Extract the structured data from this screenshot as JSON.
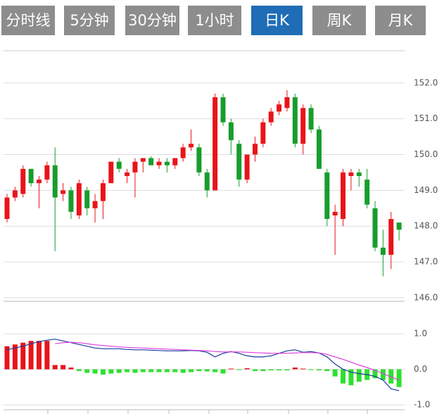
{
  "tabs": [
    "分时线",
    "5分钟",
    "30分钟",
    "1小时",
    "日K",
    "周K",
    "月K"
  ],
  "active_tab": 4,
  "chart_data": [
    {
      "type": "candlestick",
      "up_color": "#e8141b",
      "down_color": "#179d2c",
      "grid": true,
      "open": [
        148.2,
        148.8,
        148.9,
        149.6,
        149.2,
        149.3,
        149.7,
        148.9,
        149.0,
        148.3,
        149.0,
        148.5,
        148.7,
        149.2,
        149.8,
        149.4,
        149.5,
        149.8,
        149.9,
        149.7,
        149.8,
        149.7,
        149.9,
        150.2,
        150.2,
        149.5,
        149.0,
        151.6,
        150.9,
        150.3,
        149.3,
        150.0,
        150.3,
        150.9,
        151.2,
        151.3,
        151.6,
        150.3,
        151.3,
        150.7,
        149.5,
        148.3,
        148.2,
        149.4,
        149.5,
        149.3,
        148.5,
        147.4,
        147.2,
        148.1
      ],
      "high": [
        148.9,
        149.1,
        149.7,
        149.6,
        149.4,
        149.8,
        150.2,
        149.2,
        149.1,
        149.3,
        149.1,
        148.9,
        149.3,
        149.8,
        149.9,
        149.6,
        149.9,
        149.9,
        149.95,
        149.9,
        149.9,
        149.9,
        150.3,
        150.7,
        150.3,
        149.6,
        151.7,
        151.7,
        151.0,
        150.4,
        150.0,
        150.5,
        151.0,
        151.3,
        151.5,
        151.8,
        151.7,
        151.4,
        151.4,
        150.8,
        149.6,
        148.6,
        149.6,
        149.6,
        149.6,
        149.6,
        148.7,
        147.9,
        148.4,
        148.1
      ],
      "low": [
        148.1,
        148.7,
        148.8,
        149.1,
        148.5,
        149.2,
        147.3,
        148.7,
        148.2,
        148.2,
        148.3,
        148.1,
        148.2,
        149.2,
        149.5,
        149.2,
        148.8,
        149.5,
        149.7,
        149.6,
        149.5,
        149.6,
        149.8,
        150.1,
        149.4,
        148.8,
        149.0,
        150.8,
        150.0,
        149.1,
        149.2,
        149.8,
        150.2,
        150.8,
        151.1,
        151.2,
        150.2,
        150.0,
        150.6,
        149.6,
        148.0,
        147.2,
        148.0,
        149.0,
        149.1,
        148.5,
        147.3,
        146.6,
        146.8,
        147.6
      ],
      "close": [
        148.8,
        149.0,
        149.6,
        149.2,
        149.3,
        149.7,
        148.8,
        149.0,
        148.4,
        149.2,
        148.5,
        148.7,
        149.2,
        149.8,
        149.6,
        149.5,
        149.8,
        149.9,
        149.7,
        149.8,
        149.7,
        149.9,
        150.2,
        150.3,
        149.5,
        149.0,
        151.6,
        150.9,
        150.4,
        149.3,
        150.0,
        150.3,
        150.9,
        151.2,
        151.4,
        151.6,
        150.3,
        151.3,
        150.7,
        149.6,
        148.2,
        148.4,
        149.5,
        149.5,
        149.4,
        148.6,
        147.4,
        147.2,
        148.2,
        147.9
      ],
      "ylim": [
        145.9,
        152.9
      ],
      "yticks": [
        {
          "value": 146,
          "label": "146.0"
        },
        {
          "value": 147,
          "label": "147.0"
        },
        {
          "value": 148,
          "label": "148.0"
        },
        {
          "value": 149,
          "label": "149.0"
        },
        {
          "value": 150,
          "label": "150.0"
        },
        {
          "value": 151,
          "label": "151.0"
        },
        {
          "value": 152,
          "label": "152.0"
        }
      ]
    },
    {
      "type": "macd",
      "up_color": "#e8141b",
      "down_color": "#2ee02e",
      "grid": true,
      "values": [
        0.65,
        0.7,
        0.75,
        0.8,
        0.8,
        0.8,
        0.12,
        0.12,
        0.05,
        -0.05,
        -0.1,
        -0.12,
        -0.15,
        -0.12,
        -0.1,
        -0.08,
        -0.1,
        -0.08,
        -0.08,
        -0.08,
        -0.08,
        -0.08,
        -0.1,
        -0.08,
        -0.05,
        -0.06,
        -0.08,
        -0.12,
        0.02,
        -0.02,
        0.03,
        -0.05,
        -0.05,
        -0.03,
        -0.03,
        -0.03,
        0.05,
        0.02,
        -0.02,
        -0.03,
        -0.05,
        -0.2,
        -0.4,
        -0.45,
        -0.35,
        -0.3,
        -0.25,
        -0.3,
        -0.4,
        -0.5
      ],
      "series": [
        {
          "color": "#1a3a9e",
          "values": [
            0.55,
            0.6,
            0.65,
            0.72,
            0.78,
            0.82,
            0.85,
            0.8,
            0.75,
            0.7,
            0.65,
            0.6,
            0.58,
            0.58,
            0.58,
            0.56,
            0.55,
            0.55,
            0.54,
            0.53,
            0.52,
            0.52,
            0.52,
            0.53,
            0.52,
            0.48,
            0.35,
            0.45,
            0.5,
            0.45,
            0.38,
            0.35,
            0.35,
            0.38,
            0.45,
            0.52,
            0.55,
            0.48,
            0.5,
            0.46,
            0.35,
            0.15,
            0.0,
            -0.08,
            -0.12,
            -0.15,
            -0.2,
            -0.3,
            -0.55,
            -0.6
          ]
        },
        {
          "color": "#e03ce0",
          "values": [
            null,
            null,
            null,
            null,
            null,
            null,
            0.72,
            0.75,
            0.76,
            0.75,
            0.72,
            0.69,
            0.67,
            0.65,
            0.63,
            0.62,
            0.61,
            0.6,
            0.59,
            0.58,
            0.57,
            0.56,
            0.55,
            0.54,
            0.53,
            0.52,
            0.5,
            0.49,
            0.49,
            0.49,
            0.48,
            0.47,
            0.46,
            0.45,
            0.45,
            0.45,
            0.46,
            0.47,
            0.47,
            0.46,
            0.42,
            0.35,
            0.28,
            0.2,
            0.12,
            0.05,
            -0.03,
            -0.12,
            -0.22,
            -0.3
          ]
        }
      ],
      "ylim": [
        -1.1,
        1.2
      ],
      "yticks": [
        {
          "value": -1,
          "label": "-1.0"
        },
        {
          "value": 0,
          "label": "0.0"
        },
        {
          "value": 1,
          "label": "1.0"
        }
      ]
    }
  ]
}
